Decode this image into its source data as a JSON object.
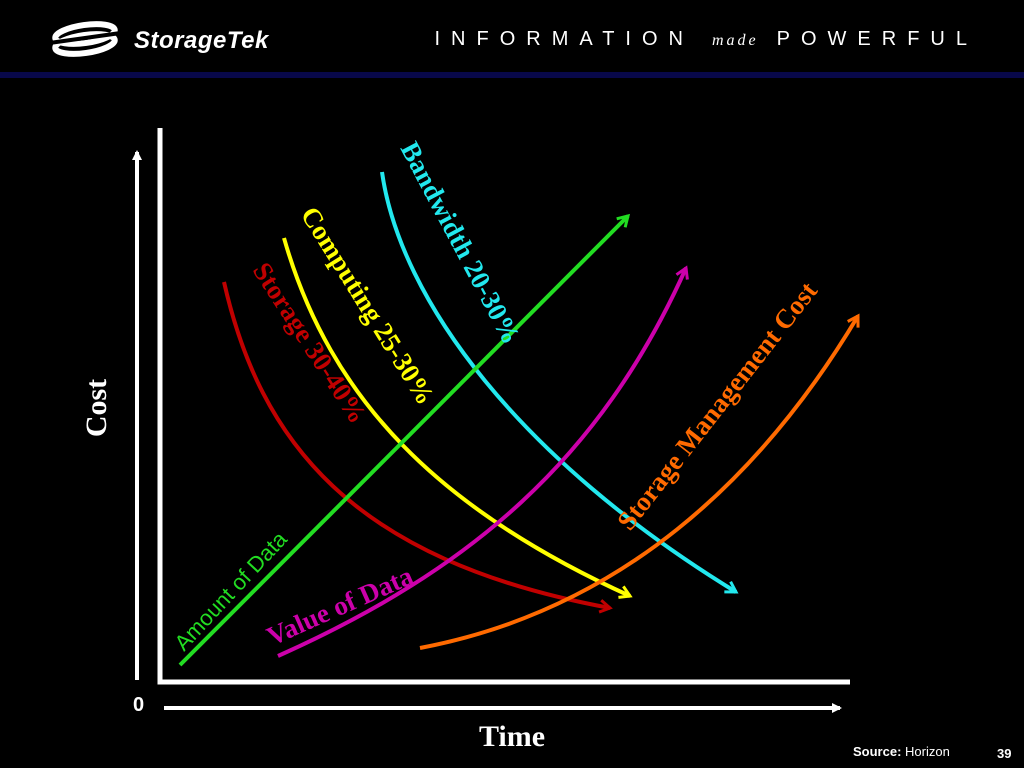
{
  "header": {
    "brand": "StorageTek",
    "tagline_pre": "INFORMATION",
    "tagline_made": "made",
    "tagline_post": "POWERFUL"
  },
  "axes": {
    "y_label": "Cost",
    "x_label": "Time",
    "origin_label": "0"
  },
  "curves": {
    "bandwidth": "Bandwidth 20-30%",
    "computing": "Computing 25-30%",
    "storage": "Storage 30-40%",
    "amount_of_data": "Amount of Data",
    "value_of_data": "Value of Data",
    "storage_mgmt": "Storage Management Cost"
  },
  "colors": {
    "bandwidth": "#22e8ee",
    "computing": "#ffff00",
    "storage": "#c00000",
    "amount_of_data": "#22dd22",
    "value_of_data": "#cc00aa",
    "storage_mgmt": "#ff6a00"
  },
  "footer": {
    "source_label": "Source:",
    "source_value": "Horizon",
    "page_number": "39"
  }
}
